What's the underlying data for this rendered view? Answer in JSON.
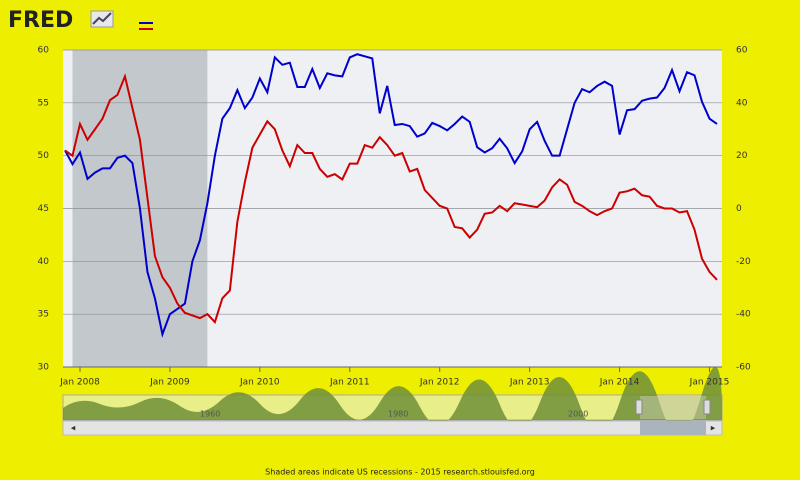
{
  "logo": "FRED",
  "footer": "Shaded areas indicate US recessions - 2015 research.stlouisfed.org",
  "navigator_labels": [
    "1960",
    "1980",
    "2000"
  ],
  "chart_data": {
    "type": "line",
    "x": [
      "2007-11",
      "2007-12",
      "2008-01",
      "2008-02",
      "2008-03",
      "2008-04",
      "2008-05",
      "2008-06",
      "2008-07",
      "2008-08",
      "2008-09",
      "2008-10",
      "2008-11",
      "2008-12",
      "2009-01",
      "2009-02",
      "2009-03",
      "2009-04",
      "2009-05",
      "2009-06",
      "2009-07",
      "2009-08",
      "2009-09",
      "2009-10",
      "2009-11",
      "2009-12",
      "2010-01",
      "2010-02",
      "2010-03",
      "2010-04",
      "2010-05",
      "2010-06",
      "2010-07",
      "2010-08",
      "2010-09",
      "2010-10",
      "2010-11",
      "2010-12",
      "2011-01",
      "2011-02",
      "2011-03",
      "2011-04",
      "2011-05",
      "2011-06",
      "2011-07",
      "2011-08",
      "2011-09",
      "2011-10",
      "2011-11",
      "2011-12",
      "2012-01",
      "2012-02",
      "2012-03",
      "2012-04",
      "2012-05",
      "2012-06",
      "2012-07",
      "2012-08",
      "2012-09",
      "2012-10",
      "2012-11",
      "2012-12",
      "2013-01",
      "2013-02",
      "2013-03",
      "2013-04",
      "2013-05",
      "2013-06",
      "2013-07",
      "2013-08",
      "2013-09",
      "2013-10",
      "2013-11",
      "2013-12",
      "2014-01",
      "2014-02",
      "2014-03",
      "2014-04",
      "2014-05",
      "2014-06",
      "2014-07",
      "2014-08",
      "2014-09",
      "2014-10",
      "2014-11",
      "2014-12",
      "2015-01",
      "2015-02"
    ],
    "series": [
      {
        "color": "#0000cc",
        "values": [
          50.5,
          49.2,
          50.3,
          47.8,
          48.4,
          48.8,
          48.8,
          49.8,
          50.0,
          49.3,
          45,
          39,
          36.5,
          33.1,
          35,
          35.5,
          36,
          40,
          42,
          45.5,
          50,
          53.5,
          54.5,
          56.2,
          54.5,
          55.5,
          57.3,
          56,
          59.3,
          58.6,
          58.8,
          56.5,
          56.5,
          58.2,
          56.4,
          57.8,
          57.6,
          57.5,
          59.3,
          59.6,
          59.4,
          59.2,
          54,
          56.6,
          52.9,
          53,
          52.8,
          51.8,
          52.1,
          53.1,
          52.8,
          52.4,
          53,
          53.7,
          53.2,
          50.8,
          50.3,
          50.7,
          51.6,
          50.7,
          49.3,
          50.4,
          52.5,
          53.2,
          51.4,
          50,
          50,
          52.5,
          55,
          56.3,
          56,
          56.6,
          57,
          56.6,
          52,
          54.3,
          54.4,
          55.2,
          55.4,
          55.5,
          56.4,
          58.1,
          56.1,
          57.9,
          57.6,
          55.1,
          53.5,
          53
        ]
      },
      {
        "color": "#cc0000",
        "axis": "y2",
        "values": [
          22,
          20,
          32,
          26,
          30,
          34,
          41,
          43,
          50,
          38,
          26,
          4,
          -18,
          -26,
          -30,
          -36,
          -39.5,
          -40.5,
          -41.5,
          -40,
          -43,
          -34,
          -31,
          -5,
          10,
          23,
          28,
          33,
          30,
          22,
          16,
          24,
          21,
          21,
          15,
          12,
          13,
          11,
          17,
          17,
          24,
          23,
          27,
          24,
          20,
          21,
          14,
          15,
          7,
          4,
          1,
          0,
          -7,
          -7.5,
          -11,
          -8,
          -2,
          -1.5,
          1,
          -1,
          2,
          1.5,
          1,
          0.5,
          3,
          8,
          11,
          9,
          2.5,
          1,
          -1,
          -2.5,
          -1,
          0,
          6,
          6.5,
          7.5,
          5,
          4.5,
          1,
          0,
          0,
          -1.5,
          -1,
          -8,
          -19,
          -24,
          -27
        ]
      }
    ],
    "recessions": [
      {
        "start": "2007-12",
        "end": "2009-06"
      }
    ],
    "xlim": [
      "2007-11",
      "2015-02"
    ],
    "xticks": [
      {
        "value": "2008-01",
        "label": "Jan 2008"
      },
      {
        "value": "2009-01",
        "label": "Jan 2009"
      },
      {
        "value": "2010-01",
        "label": "Jan 2010"
      },
      {
        "value": "2011-01",
        "label": "Jan 2011"
      },
      {
        "value": "2012-01",
        "label": "Jan 2012"
      },
      {
        "value": "2013-01",
        "label": "Jan 2013"
      },
      {
        "value": "2014-01",
        "label": "Jan 2014"
      },
      {
        "value": "2015-01",
        "label": "Jan 2015"
      }
    ],
    "ylim": [
      30,
      60
    ],
    "yticks": [
      30,
      35,
      40,
      45,
      50,
      55,
      60
    ],
    "y2lim": [
      -60,
      60
    ],
    "y2ticks": [
      -60,
      -40,
      -20,
      0,
      20,
      40,
      60
    ],
    "grid": true
  }
}
